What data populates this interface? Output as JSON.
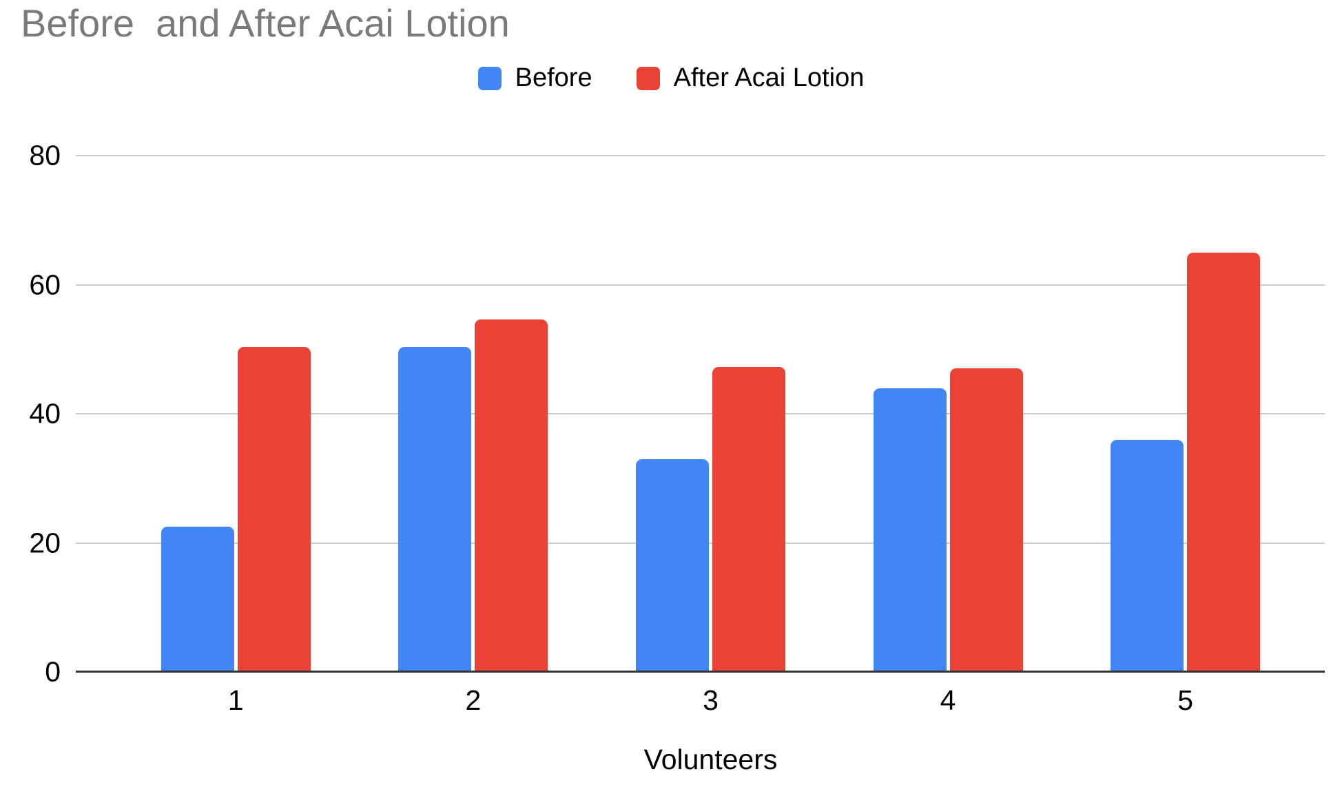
{
  "chart_data": {
    "type": "bar",
    "title": "Before  and After Acai Lotion",
    "categories": [
      "1",
      "2",
      "3",
      "4",
      "5"
    ],
    "series": [
      {
        "name": "Before",
        "color": "#4285F4",
        "values": [
          22.5,
          50.3,
          33,
          44,
          36
        ]
      },
      {
        "name": "After Acai Lotion",
        "color": "#EA4335",
        "values": [
          50.3,
          54.6,
          47.3,
          47,
          65
        ]
      }
    ],
    "xlabel": "Volunteers",
    "ylabel": "",
    "ylim": [
      0,
      80
    ],
    "yticks": [
      0,
      20,
      40,
      60,
      80
    ],
    "grid": true,
    "legend_position": "top-center"
  },
  "style": {
    "title_color": "#7a7a7a",
    "axis_text_color": "#000000",
    "gridline_color": "#cccccc",
    "baseline_color": "#333333",
    "background_color": "#ffffff"
  }
}
